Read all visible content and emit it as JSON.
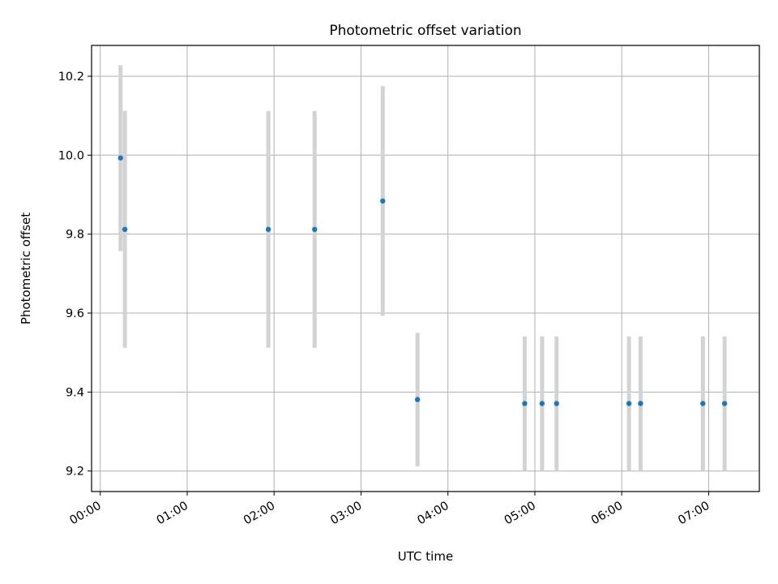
{
  "chart_data": {
    "type": "scatter",
    "title": "Photometric offset variation",
    "xlabel": "UTC time",
    "ylabel": "Photometric offset",
    "x_unit": "UTC time (HH:MM)",
    "xlim": [
      "23:54",
      "07:35"
    ],
    "ylim": [
      9.148,
      10.278
    ],
    "x_ticks": [
      "00:00",
      "01:00",
      "02:00",
      "03:00",
      "04:00",
      "05:00",
      "06:00",
      "07:00"
    ],
    "y_ticks": [
      "9.2",
      "9.4",
      "9.6",
      "9.8",
      "10.0",
      "10.2"
    ],
    "grid": true,
    "marker_color": "#1f77b4",
    "errorbar_color": "#d3d3d3",
    "series": [
      {
        "points": [
          {
            "x": "00:14",
            "y": 9.993,
            "err_low": 9.757,
            "err_high": 10.228
          },
          {
            "x": "00:17",
            "y": 9.812,
            "err_low": 9.512,
            "err_high": 10.112
          },
          {
            "x": "01:56",
            "y": 9.812,
            "err_low": 9.512,
            "err_high": 10.112
          },
          {
            "x": "02:28",
            "y": 9.812,
            "err_low": 9.512,
            "err_high": 10.112
          },
          {
            "x": "03:15",
            "y": 9.884,
            "err_low": 9.593,
            "err_high": 10.175
          },
          {
            "x": "03:39",
            "y": 9.381,
            "err_low": 9.212,
            "err_high": 9.55
          },
          {
            "x": "04:53",
            "y": 9.371,
            "err_low": 9.2,
            "err_high": 9.541
          },
          {
            "x": "05:05",
            "y": 9.371,
            "err_low": 9.2,
            "err_high": 9.541
          },
          {
            "x": "05:15",
            "y": 9.371,
            "err_low": 9.2,
            "err_high": 9.541
          },
          {
            "x": "06:05",
            "y": 9.371,
            "err_low": 9.2,
            "err_high": 9.541
          },
          {
            "x": "06:13",
            "y": 9.371,
            "err_low": 9.2,
            "err_high": 9.541
          },
          {
            "x": "06:56",
            "y": 9.371,
            "err_low": 9.2,
            "err_high": 9.541
          },
          {
            "x": "07:11",
            "y": 9.371,
            "err_low": 9.2,
            "err_high": 9.541
          }
        ]
      }
    ]
  }
}
